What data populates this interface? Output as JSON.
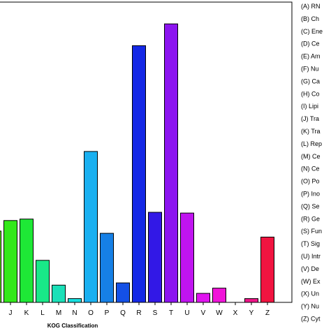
{
  "chart_data": {
    "type": "bar",
    "categories": [
      "I",
      "J",
      "K",
      "L",
      "M",
      "N",
      "O",
      "P",
      "Q",
      "R",
      "S",
      "T",
      "U",
      "V",
      "W",
      "X",
      "Y",
      "Z"
    ],
    "values": [
      95,
      109,
      111,
      56,
      23,
      5,
      201,
      92,
      26,
      342,
      120,
      371,
      119,
      12,
      19,
      0,
      5,
      87
    ],
    "colors": [
      "#5af000",
      "#33e81a",
      "#1ee836",
      "#19e888",
      "#1ae0b8",
      "#16e0e0",
      "#1ab0f0",
      "#1680e6",
      "#1450e6",
      "#1428e6",
      "#3218e6",
      "#8c14f0",
      "#c014f0",
      "#e014f0",
      "#f014d8",
      "#f014b0",
      "#f01488",
      "#f01440"
    ],
    "xlabel": "KOG Classification",
    "ylim": [
      0,
      400
    ],
    "grid": false,
    "legend_placement": "right",
    "legend": [
      "(A) RN",
      "(B) Ch",
      "(C) Ene",
      "(D) Ce",
      "(E) Am",
      "(F) Nu",
      "(G) Ca",
      "(H) Co",
      "(I) Lipi",
      "(J) Tra",
      "(K) Tra",
      "(L) Rep",
      "(M) Ce",
      "(N) Ce",
      "(O) Po",
      "(P) Ino",
      "(Q) Se",
      "(R) Ge",
      "(S) Fun",
      "(T) Sig",
      "(U) Intr",
      "(V) De",
      "(W) Ex",
      "(X) Un",
      "(Y) Nu",
      "(Z) Cyt"
    ]
  }
}
